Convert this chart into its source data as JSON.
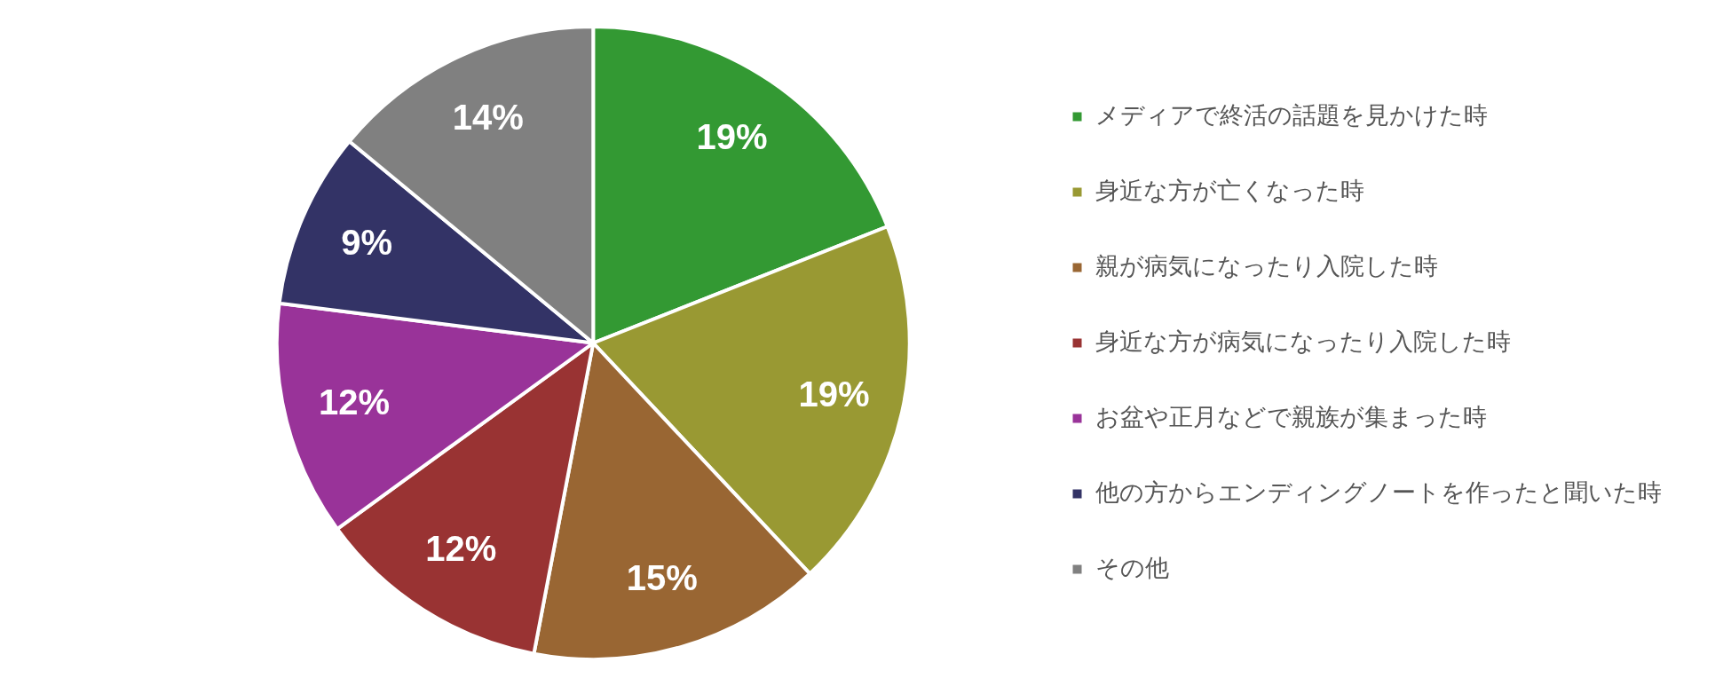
{
  "chart_data": {
    "type": "pie",
    "categories": [
      "メディアで終活の話題を見かけた時",
      "身近な方が亡くなった時",
      "親が病気になったり入院した時",
      "身近な方が病気になったり入院した時",
      "お盆や正月などで親族が集まった時",
      "他の方からエンディングノートを作ったと聞いた時",
      "その他"
    ],
    "values": [
      19,
      19,
      15,
      12,
      12,
      9,
      14
    ],
    "value_labels": [
      "19%",
      "19%",
      "15%",
      "12%",
      "12%",
      "9%",
      "14%"
    ],
    "colors": [
      "#339933",
      "#999933",
      "#996633",
      "#993333",
      "#993399",
      "#333366",
      "#808080"
    ],
    "legend": "right"
  }
}
